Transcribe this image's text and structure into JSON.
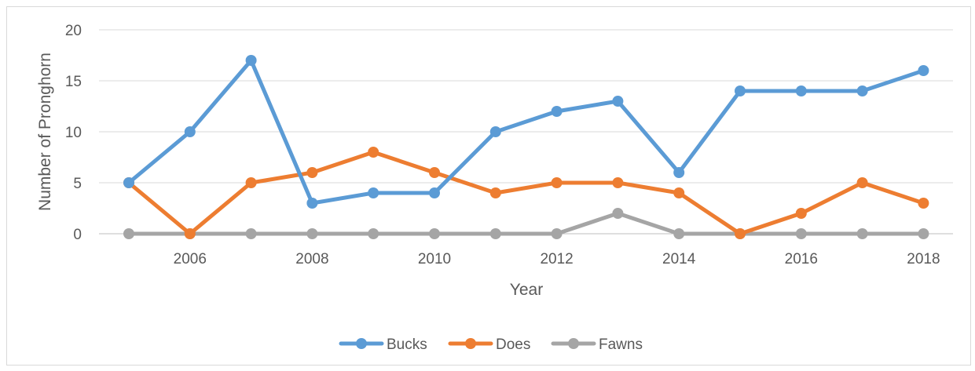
{
  "chart_data": {
    "type": "line",
    "title": "",
    "xlabel": "Year",
    "ylabel": "Number of Pronghorn",
    "xlim": [
      2005,
      2018
    ],
    "ylim": [
      0,
      20
    ],
    "x_ticks": [
      2006,
      2008,
      2010,
      2012,
      2014,
      2016,
      2018
    ],
    "y_ticks": [
      0,
      5,
      10,
      15,
      20
    ],
    "grid": "horizontal",
    "legend_position": "bottom",
    "x": [
      2005,
      2006,
      2007,
      2008,
      2009,
      2010,
      2011,
      2012,
      2013,
      2014,
      2015,
      2016,
      2017,
      2018
    ],
    "series": [
      {
        "name": "Bucks",
        "color": "#5b9bd5",
        "values": [
          5,
          10,
          17,
          3,
          4,
          4,
          10,
          12,
          13,
          6,
          14,
          14,
          14,
          16
        ]
      },
      {
        "name": "Does",
        "color": "#ed7d31",
        "values": [
          5,
          0,
          5,
          6,
          8,
          6,
          4,
          5,
          5,
          4,
          0,
          2,
          5,
          3
        ]
      },
      {
        "name": "Fawns",
        "color": "#a5a5a5",
        "values": [
          0,
          0,
          0,
          0,
          0,
          0,
          0,
          0,
          2,
          0,
          0,
          0,
          0,
          0
        ]
      }
    ]
  }
}
